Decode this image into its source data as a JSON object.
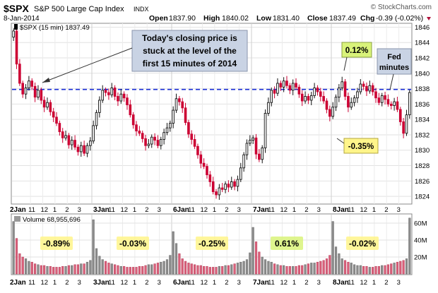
{
  "header": {
    "symbol": "$SPX",
    "name": "S&P 500 Large Cap Index",
    "exchange": "INDX",
    "date": "8-Jan-2014",
    "open_label": "Open",
    "open": "1837.90",
    "high_label": "High",
    "high": "1840.02",
    "low_label": "Low",
    "low": "1831.40",
    "close_label": "Close",
    "close": "1837.49",
    "chg_label": "Chg",
    "chg": "-0.39 (-0.02%)",
    "watermark": "© StockCharts.com"
  },
  "chart_data": {
    "type": "candlestick",
    "price_legend": "$SPX (15 min) 1837.49",
    "volume_legend": "Volume 68,955,696",
    "ylim": [
      1823,
      1846.5
    ],
    "yticks": [
      "1824",
      "1826",
      "1828",
      "1830",
      "1832",
      "1834",
      "1836",
      "1838",
      "1840",
      "1842",
      "1844",
      "1846"
    ],
    "volume_ylim": [
      0,
      70
    ],
    "volume_ticks": [
      "20M",
      "40M",
      "60M"
    ],
    "reference_level": 1837.9,
    "days": [
      "2Jan",
      "3Jan",
      "6Jan",
      "7Jan",
      "8Jan"
    ],
    "hour_labels": [
      "11",
      "12",
      "1",
      "2",
      "3"
    ],
    "callouts": [
      {
        "text": "Today's closing price is stuck at the level of the first 15 minutes of 2014"
      },
      {
        "text": "Fed minutes"
      },
      {
        "text": "0.12%"
      },
      {
        "text": "-0.35%"
      }
    ],
    "day_changes": [
      "-0.89%",
      "-0.03%",
      "-0.25%",
      "0.61%",
      "-0.02%"
    ],
    "closes": [
      1845.5,
      1841.2,
      1838.7,
      1837.3,
      1838.1,
      1839.0,
      1838.3,
      1836.9,
      1837.8,
      1836.5,
      1835.6,
      1836.2,
      1835.0,
      1834.3,
      1833.5,
      1832.4,
      1831.6,
      1831.9,
      1830.7,
      1831.3,
      1830.4,
      1829.8,
      1830.6,
      1829.6,
      1830.6,
      1831.2,
      1833.2,
      1834.9,
      1836.5,
      1837.8,
      1837.5,
      1837.2,
      1838.1,
      1837.0,
      1836.4,
      1837.3,
      1836.8,
      1835.9,
      1834.6,
      1833.3,
      1832.5,
      1832.2,
      1831.5,
      1830.6,
      1830.8,
      1831.7,
      1831.3,
      1830.6,
      1831.4,
      1832.3,
      1832.9,
      1833.5,
      1835.2,
      1836.7,
      1836.3,
      1835.5,
      1833.6,
      1832.1,
      1831.4,
      1830.5,
      1829.4,
      1828.3,
      1827.9,
      1826.8,
      1825.9,
      1824.6,
      1824.2,
      1825.1,
      1824.9,
      1825.6,
      1825.2,
      1825.9,
      1825.3,
      1826.2,
      1827.7,
      1829.4,
      1830.9,
      1831.3,
      1831.6,
      1829.5,
      1828.8,
      1830.3,
      1834.8,
      1836.2,
      1837.8,
      1837.4,
      1838.7,
      1838.2,
      1839.0,
      1838.4,
      1837.8,
      1838.7,
      1838.2,
      1837.3,
      1836.4,
      1837.0,
      1836.5,
      1837.1,
      1838.1,
      1837.6,
      1837.0,
      1836.4,
      1835.3,
      1834.4,
      1835.6,
      1836.9,
      1838.1,
      1838.9,
      1837.0,
      1835.6,
      1836.2,
      1836.8,
      1837.6,
      1838.6,
      1838.3,
      1837.7,
      1838.4,
      1837.6,
      1836.8,
      1836.2,
      1837.1,
      1836.6,
      1836.0,
      1835.8,
      1836.3,
      1835.3,
      1833.7,
      1832.2,
      1834.6,
      1837.5
    ],
    "volumes": [
      62,
      42,
      24,
      20,
      18,
      15,
      14,
      12,
      11,
      10,
      10,
      9,
      9,
      8,
      8,
      8,
      9,
      9,
      10,
      10,
      11,
      11,
      12,
      12,
      14,
      16,
      64,
      30,
      21,
      17,
      15,
      13,
      12,
      11,
      10,
      9,
      9,
      8,
      8,
      8,
      8,
      9,
      9,
      10,
      11,
      11,
      12,
      13,
      14,
      15,
      17,
      22,
      50,
      36,
      24,
      18,
      15,
      13,
      12,
      11,
      10,
      10,
      9,
      9,
      8,
      8,
      8,
      9,
      9,
      10,
      10,
      11,
      12,
      13,
      14,
      15,
      17,
      25,
      55,
      38,
      26,
      20,
      17,
      15,
      14,
      12,
      11,
      10,
      10,
      9,
      9,
      9,
      9,
      10,
      10,
      11,
      12,
      13,
      13,
      14,
      15,
      16,
      18,
      22,
      62,
      32,
      24,
      18,
      16,
      14,
      13,
      11,
      10,
      10,
      9,
      9,
      8,
      8,
      9,
      9,
      10,
      10,
      11,
      12,
      13,
      14,
      15,
      16,
      18,
      66
    ]
  }
}
